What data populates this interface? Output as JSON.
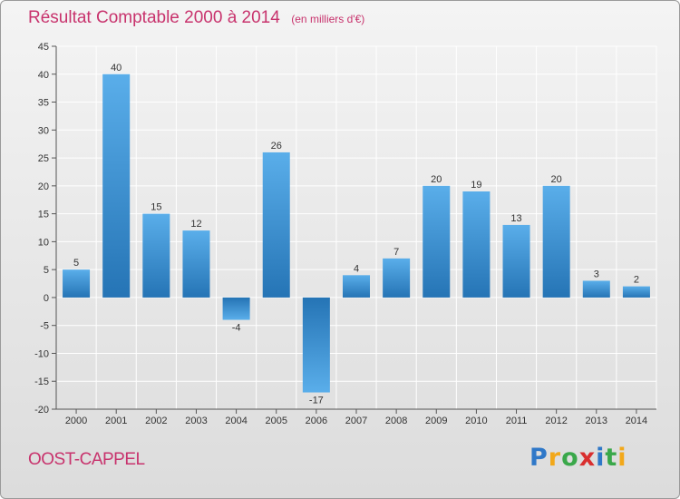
{
  "chart_data": {
    "type": "bar",
    "title": "Résultat Comptable 2000 à 2014",
    "subtitle": "(en milliers d'€)",
    "xlabel": "",
    "ylabel": "",
    "categories": [
      "2000",
      "2001",
      "2002",
      "2003",
      "2004",
      "2005",
      "2006",
      "2007",
      "2008",
      "2009",
      "2010",
      "2011",
      "2012",
      "2013",
      "2014"
    ],
    "values": [
      5,
      40,
      15,
      12,
      -4,
      26,
      -17,
      4,
      7,
      20,
      19,
      13,
      20,
      3,
      2
    ],
    "value_labels": [
      "5",
      "40",
      "15",
      "12",
      "-4",
      "26",
      "-17",
      "4",
      "7",
      "20",
      "19",
      "13",
      "20",
      "3",
      "2"
    ],
    "ylim": [
      -20,
      45
    ],
    "yticks": [
      -20,
      -15,
      -10,
      -5,
      0,
      5,
      10,
      15,
      20,
      25,
      30,
      35,
      40,
      45
    ],
    "grid": true,
    "colors": {
      "bar_light": "#5aaeea",
      "bar_dark": "#2574b5",
      "grid": "#ffffff",
      "axis": "#555555"
    }
  },
  "footer": {
    "commune": "OOST-CAPPEL",
    "brand_letters": [
      {
        "ch": "P",
        "color": "#2f78c8"
      },
      {
        "ch": "r",
        "color": "#f2a81a"
      },
      {
        "ch": "o",
        "color": "#3aa84a"
      },
      {
        "ch": "x",
        "color": "#d92f2f"
      },
      {
        "ch": "i",
        "color": "#2f78c8"
      },
      {
        "ch": "t",
        "color": "#3aa84a"
      },
      {
        "ch": "i",
        "color": "#f2a81a"
      }
    ]
  }
}
